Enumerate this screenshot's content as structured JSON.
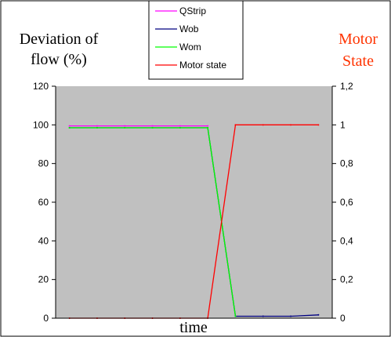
{
  "chart_data": {
    "type": "line",
    "xlabel": "time",
    "ylabel_left": [
      "Deviation of",
      "flow (%)"
    ],
    "ylabel_right": [
      "Motor",
      "State"
    ],
    "left_axis": {
      "ylim": [
        0,
        120
      ],
      "ticks": [
        "0",
        "20",
        "40",
        "60",
        "80",
        "100",
        "120"
      ],
      "tick_values": [
        0,
        20,
        40,
        60,
        80,
        100,
        120
      ]
    },
    "right_axis": {
      "ylim": [
        0,
        1.2
      ],
      "ticks": [
        "0",
        "0,2",
        "0,4",
        "0,6",
        "0,8",
        "1",
        "1,2"
      ],
      "tick_values": [
        0,
        0.2,
        0.4,
        0.6,
        0.8,
        1.0,
        1.2
      ]
    },
    "x": [
      0,
      1,
      2,
      3,
      4,
      5,
      6,
      7,
      8,
      9
    ],
    "xlim": [
      -0.5,
      9.5
    ],
    "grid": false,
    "plot_background": "#C0C0C0",
    "legend_placement": "top-center",
    "series": [
      {
        "name": "QStrip",
        "color": "#FF00FF",
        "axis": "left",
        "values": [
          99.5,
          99.5,
          99.5,
          99.5,
          99.5,
          99.5,
          null,
          null,
          null,
          null
        ]
      },
      {
        "name": "Wob",
        "color": "#000080",
        "axis": "left",
        "values": [
          98.5,
          98.5,
          98.5,
          98.5,
          98.5,
          98.5,
          1,
          1,
          1,
          1.7
        ]
      },
      {
        "name": "Wom",
        "color": "#00FF00",
        "axis": "left",
        "values": [
          98.5,
          98.5,
          98.5,
          98.5,
          98.5,
          98.5,
          1,
          null,
          null,
          null
        ]
      },
      {
        "name": "Motor state",
        "color": "#FF0000",
        "axis": "right",
        "values": [
          0,
          0,
          0,
          0,
          0,
          0,
          1,
          1,
          1,
          1
        ]
      }
    ]
  }
}
